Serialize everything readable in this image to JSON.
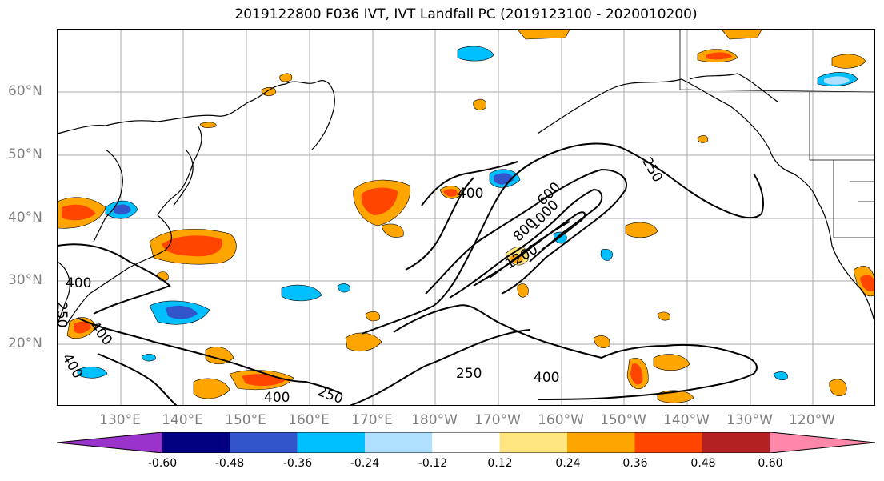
{
  "title": "2019122800 F036 IVT, IVT Landfall PC (2019123100 - 2020010200)",
  "latitude_labels": [
    "60°N",
    "50°N",
    "40°N",
    "30°N",
    "20°N"
  ],
  "longitude_labels": [
    "130°E",
    "140°E",
    "150°E",
    "160°E",
    "170°E",
    "180°W",
    "170°W",
    "160°W",
    "150°W",
    "140°W",
    "130°W",
    "120°W"
  ],
  "contour_labels": [
    "250",
    "400",
    "600",
    "800",
    "1000",
    "1200",
    "400",
    "400",
    "250",
    "400",
    "250",
    "400",
    "400",
    "250"
  ],
  "colorbar": {
    "ticks": [
      "-0.60",
      "-0.48",
      "-0.36",
      "-0.24",
      "-0.12",
      "0.12",
      "0.24",
      "0.36",
      "0.48",
      "0.60"
    ],
    "colors": [
      "#9933cc",
      "#000080",
      "#3355cc",
      "#00bfff",
      "#b0e0ff",
      "#ffffff",
      "#ffe680",
      "#ffa500",
      "#ff4500",
      "#b22222",
      "#ff88aa"
    ]
  }
}
